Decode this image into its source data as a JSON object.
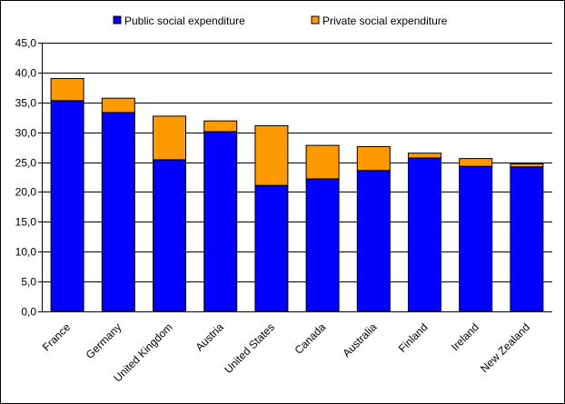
{
  "chart_data": {
    "type": "bar",
    "stacked": true,
    "categories": [
      "France",
      "Germany",
      "United Kingdom",
      "Austria",
      "United States",
      "Canada",
      "Australia",
      "Finland",
      "Ireland",
      "New Zealand"
    ],
    "series": [
      {
        "name": "Public social expenditure",
        "color": "#0000ff",
        "values": [
          35.3,
          33.3,
          25.4,
          30.1,
          21.1,
          22.2,
          23.6,
          25.7,
          24.3,
          24.2
        ]
      },
      {
        "name": "Private social expenditure",
        "color": "#ff9900",
        "values": [
          3.7,
          2.4,
          7.3,
          1.8,
          10.0,
          5.6,
          4.0,
          0.8,
          1.3,
          0.5
        ]
      }
    ],
    "yticks": [
      "0,0",
      "5,0",
      "10,0",
      "15,0",
      "20,0",
      "25,0",
      "30,0",
      "35,0",
      "40,0",
      "45,0"
    ],
    "ylim": [
      0,
      45
    ],
    "grid": true,
    "legend": "top",
    "title": "",
    "xlabel": "",
    "ylabel": ""
  }
}
